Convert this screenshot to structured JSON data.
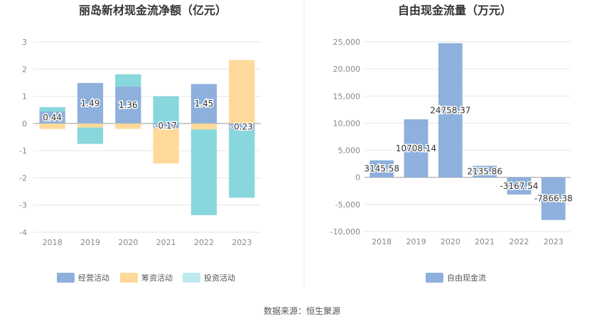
{
  "source_note": "数据来源：恒生聚源",
  "colors": {
    "operating": "#8eb0dc",
    "financing": "#fed99a",
    "investing": "#87d7dc",
    "fcf": "#8eb0dc",
    "investing_legend": "#bde9ec"
  },
  "chart_data": [
    {
      "type": "bar",
      "stacked": true,
      "title": "丽岛新材现金流净额（亿元）",
      "categories": [
        "2018",
        "2019",
        "2020",
        "2021",
        "2022",
        "2023"
      ],
      "ylim": [
        -4,
        3
      ],
      "yticks": [
        3,
        2,
        1,
        0,
        -1,
        -2,
        -3,
        -4
      ],
      "ytick_labels": [
        "3",
        "2",
        "1",
        "0",
        "-1",
        "-2",
        "-3",
        "-4"
      ],
      "grid": true,
      "legend_position": "bottom",
      "series": [
        {
          "name": "经营活动",
          "color_key": "operating",
          "values": [
            0.44,
            1.49,
            1.36,
            -0.17,
            1.45,
            -0.23
          ]
        },
        {
          "name": "筹资活动",
          "color_key": "financing",
          "values": [
            -0.2,
            -0.15,
            -0.2,
            -1.3,
            -0.22,
            2.33
          ]
        },
        {
          "name": "投资活动",
          "color_key": "investing",
          "values": [
            0.16,
            -0.6,
            0.45,
            1.0,
            -3.15,
            -2.5
          ]
        }
      ],
      "data_labels": [
        "0.44",
        "1.49",
        "1.36",
        "-0.17",
        "1.45",
        "-0.23"
      ]
    },
    {
      "type": "bar",
      "title": "自由现金流量（万元）",
      "categories": [
        "2018",
        "2019",
        "2020",
        "2021",
        "2022",
        "2023"
      ],
      "ylim": [
        -10000,
        25000
      ],
      "yticks": [
        25000,
        20000,
        15000,
        10000,
        5000,
        0,
        -5000,
        -10000
      ],
      "ytick_labels": [
        "25,000",
        "20,000",
        "15,000",
        "10,000",
        "5,000",
        "0",
        "-5,000",
        "-10,000"
      ],
      "grid": true,
      "legend_position": "bottom",
      "series": [
        {
          "name": "自由现金流",
          "color_key": "fcf",
          "values": [
            3145.58,
            10708.14,
            24758.37,
            2135.86,
            -3167.54,
            -7866.38
          ]
        }
      ],
      "data_labels": [
        "3145.58",
        "10708.14",
        "24758.37",
        "2135.86",
        "-3167.54",
        "-7866.38"
      ]
    }
  ]
}
